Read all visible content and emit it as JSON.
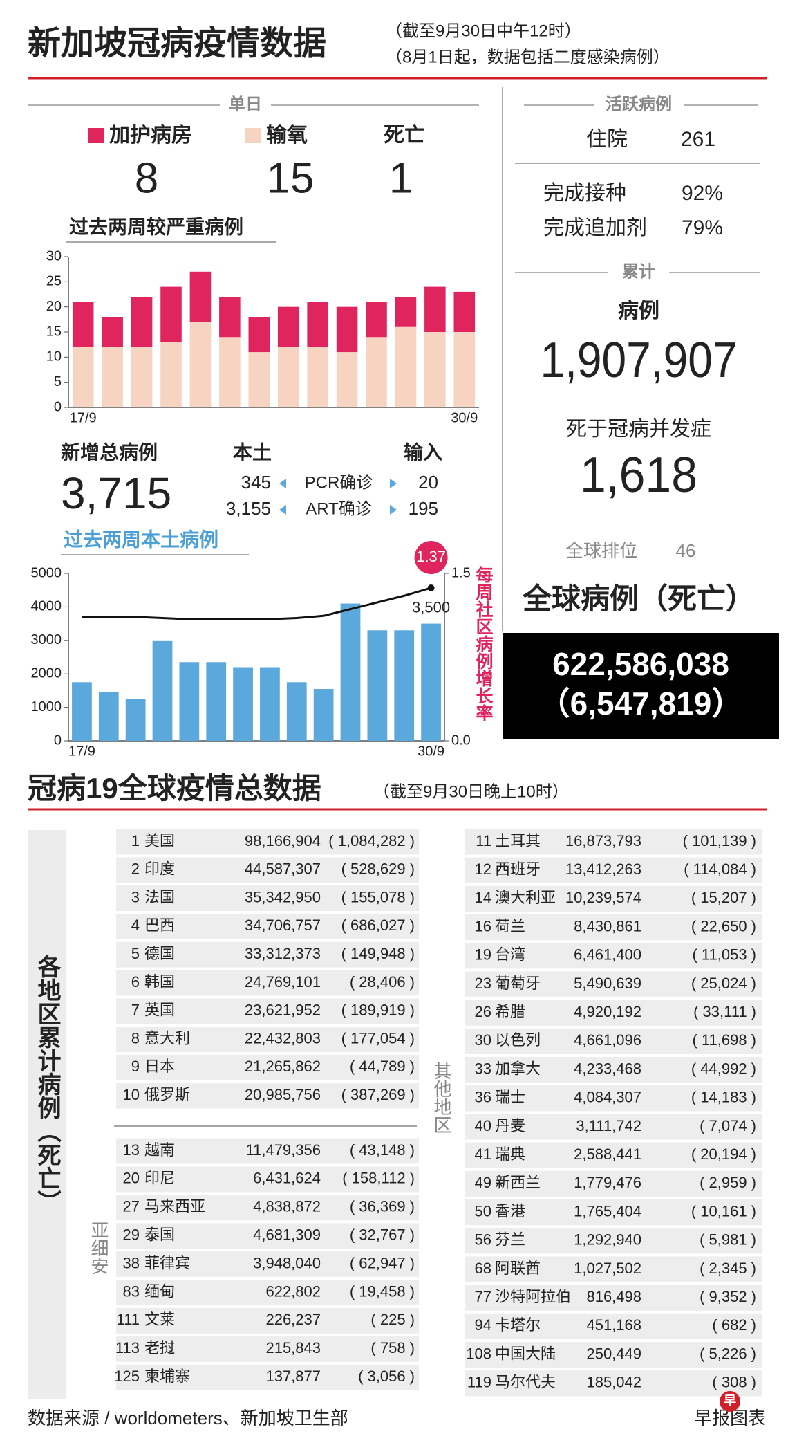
{
  "header": {
    "title": "新加坡冠病疫情数据",
    "notes": [
      "（截至9月30日中午12时）",
      "（8月1日起，数据包括二度感染病例）"
    ]
  },
  "daily": {
    "title": "单日",
    "items": [
      {
        "label": "加护病房",
        "value": "8",
        "color": "#e0245e"
      },
      {
        "label": "输氧",
        "value": "15",
        "color": "#f7d3c2"
      },
      {
        "label": "死亡",
        "value": "1"
      }
    ]
  },
  "new_cases": {
    "title": "新增总病例",
    "total": "3,715",
    "local_label": "本土",
    "imported_label": "输入",
    "rows": [
      {
        "local": "345",
        "label": "PCR确诊",
        "imported": "20"
      },
      {
        "local": "3,155",
        "label": "ART确诊",
        "imported": "195"
      }
    ]
  },
  "chart_data": [
    {
      "type": "bar",
      "stacked": true,
      "title": "过去两周较严重病例",
      "categories": [
        "17/9",
        null,
        null,
        null,
        null,
        null,
        null,
        null,
        null,
        null,
        null,
        null,
        null,
        "30/9"
      ],
      "series": [
        {
          "color": "#f7d3c2",
          "values": [
            12,
            12,
            12,
            13,
            17,
            14,
            11,
            12,
            12,
            11,
            14,
            16,
            15,
            15
          ]
        },
        {
          "color": "#e0245e",
          "values": [
            9,
            6,
            10,
            11,
            10,
            8,
            7,
            8,
            9,
            9,
            7,
            6,
            9,
            8
          ]
        }
      ],
      "ylim": [
        0,
        30
      ],
      "yticks": [
        0,
        5,
        10,
        15,
        20,
        25,
        30
      ]
    },
    {
      "type": "bar",
      "title": "过去两周本土病例",
      "categories": [
        "17/9",
        null,
        null,
        null,
        null,
        null,
        null,
        null,
        null,
        null,
        null,
        null,
        null,
        "30/9"
      ],
      "series": [
        {
          "type": "bar",
          "color": "#5ba8dc",
          "values": [
            1750,
            1450,
            1250,
            3000,
            2350,
            2350,
            2200,
            2200,
            1750,
            1550,
            4100,
            3300,
            3300,
            3500
          ],
          "value_labels": [
            null,
            null,
            null,
            null,
            null,
            null,
            null,
            null,
            null,
            null,
            null,
            null,
            null,
            "3,500"
          ]
        },
        {
          "type": "line",
          "axis": "y2",
          "name": "每周社区病例增长率",
          "color": "#111111",
          "values": [
            1.11,
            1.11,
            1.11,
            1.1,
            1.09,
            1.09,
            1.09,
            1.09,
            1.1,
            1.12,
            1.18,
            1.24,
            1.3,
            1.37
          ],
          "value_labels": [
            null,
            null,
            null,
            null,
            null,
            null,
            null,
            null,
            null,
            null,
            null,
            null,
            null,
            "1.37"
          ]
        }
      ],
      "ylim": [
        0,
        5000
      ],
      "yticks": [
        0,
        1000,
        2000,
        3000,
        4000,
        5000
      ],
      "y2lim": [
        0,
        1.5
      ],
      "y2ticks": [
        {
          "value": 0,
          "label": "0.0"
        },
        {
          "value": 1.5,
          "label": "1.5"
        }
      ]
    }
  ],
  "summary": {
    "active": {
      "title": "活跃病例",
      "label": "住院",
      "value": "261"
    },
    "vaccination": [
      {
        "label": "完成接种",
        "value": "92%"
      },
      {
        "label": "完成追加剂",
        "value": "79%"
      }
    ],
    "cumulative": {
      "title": "累计",
      "cases_label": "病例",
      "cases": "1,907,907",
      "deaths_label": "死于冠病并发症",
      "deaths": "1,618",
      "rank_label": "全球排位",
      "rank": "46"
    },
    "world": {
      "title": "全球病例（死亡）",
      "cases": "622,586,038",
      "deaths": "（6,547,819）"
    }
  },
  "global": {
    "title": "冠病19全球疫情总数据",
    "note": "（截至9月30日晚上10时）",
    "side_label": "各地区累计病例（死亡）",
    "top10": [
      [
        "1",
        "美国",
        "98,166,904",
        "( 1,084,282 )"
      ],
      [
        "2",
        "印度",
        "44,587,307",
        "( 528,629 )"
      ],
      [
        "3",
        "法国",
        "35,342,950",
        "( 155,078 )"
      ],
      [
        "4",
        "巴西",
        "34,706,757",
        "( 686,027 )"
      ],
      [
        "5",
        "德国",
        "33,312,373",
        "( 149,948 )"
      ],
      [
        "6",
        "韩国",
        "24,769,101",
        "( 28,406 )"
      ],
      [
        "7",
        "英国",
        "23,621,952",
        "( 189,919 )"
      ],
      [
        "8",
        "意大利",
        "22,432,803",
        "( 177,054 )"
      ],
      [
        "9",
        "日本",
        "21,265,862",
        "( 44,789 )"
      ],
      [
        "10",
        "俄罗斯",
        "20,985,756",
        "( 387,269 )"
      ]
    ],
    "asean": {
      "label": "亚细安",
      "rows": [
        [
          "13",
          "越南",
          "11,479,356",
          "( 43,148 )"
        ],
        [
          "20",
          "印尼",
          "6,431,624",
          "( 158,112 )"
        ],
        [
          "27",
          "马来西亚",
          "4,838,872",
          "( 36,369 )"
        ],
        [
          "29",
          "泰国",
          "4,681,309",
          "( 32,767 )"
        ],
        [
          "38",
          "菲律宾",
          "3,948,040",
          "( 62,947 )"
        ],
        [
          "83",
          "缅甸",
          "622,802",
          "( 19,458 )"
        ],
        [
          "111",
          "文莱",
          "226,237",
          "( 225 )"
        ],
        [
          "113",
          "老挝",
          "215,843",
          "( 758 )"
        ],
        [
          "125",
          "柬埔寨",
          "137,877",
          "( 3,056 )"
        ]
      ]
    },
    "others": {
      "label": "其他地区",
      "rows": [
        [
          "11",
          "土耳其",
          "16,873,793",
          "( 101,139 )"
        ],
        [
          "12",
          "西班牙",
          "13,412,263",
          "( 114,084 )"
        ],
        [
          "14",
          "澳大利亚",
          "10,239,574",
          "( 15,207 )"
        ],
        [
          "16",
          "荷兰",
          "8,430,861",
          "( 22,650 )"
        ],
        [
          "19",
          "台湾",
          "6,461,400",
          "( 11,053 )"
        ],
        [
          "23",
          "葡萄牙",
          "5,490,639",
          "( 25,024 )"
        ],
        [
          "26",
          "希腊",
          "4,920,192",
          "( 33,111 )"
        ],
        [
          "30",
          "以色列",
          "4,661,096",
          "( 11,698 )"
        ],
        [
          "33",
          "加拿大",
          "4,233,468",
          "( 44,992 )"
        ],
        [
          "36",
          "瑞士",
          "4,084,307",
          "( 14,183 )"
        ],
        [
          "40",
          "丹麦",
          "3,111,742",
          "( 7,074 )"
        ],
        [
          "41",
          "瑞典",
          "2,588,441",
          "( 20,194 )"
        ],
        [
          "49",
          "新西兰",
          "1,779,476",
          "( 2,959 )"
        ],
        [
          "50",
          "香港",
          "1,765,404",
          "( 10,161 )"
        ],
        [
          "56",
          "芬兰",
          "1,292,940",
          "( 5,981 )"
        ],
        [
          "68",
          "阿联酋",
          "1,027,502",
          "( 2,345 )"
        ],
        [
          "77",
          "沙特阿拉伯",
          "816,498",
          "( 9,352 )"
        ],
        [
          "94",
          "卡塔尔",
          "451,168",
          "( 682 )"
        ],
        [
          "108",
          "中国大陆",
          "250,449",
          "( 5,226 )"
        ],
        [
          "119",
          "马尔代夫",
          "185,042",
          "( 308 )"
        ]
      ]
    }
  },
  "footer": {
    "source": "数据来源 / worldometers、新加坡卫生部",
    "logo": "早",
    "credit": "早报图表"
  }
}
